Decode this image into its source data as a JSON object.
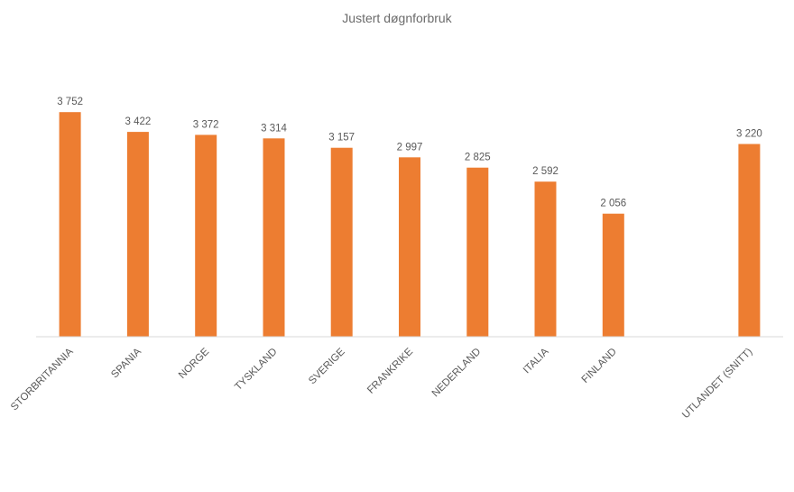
{
  "chart_data": {
    "type": "bar",
    "title": "Justert døgnforbruk",
    "xlabel": "",
    "ylabel": "",
    "categories": [
      "STORBRITANNIA",
      "SPANIA",
      "NORGE",
      "TYSKLAND",
      "SVERIGE",
      "FRANKRIKE",
      "NEDERLAND",
      "ITALIA",
      "FINLAND",
      "",
      "UTLANDET (SNITT)"
    ],
    "values": [
      3752,
      3422,
      3372,
      3314,
      3157,
      2997,
      2825,
      2592,
      2056,
      null,
      3220
    ],
    "data_labels": [
      "3 752",
      "3 422",
      "3 372",
      "3 314",
      "3 157",
      "2 997",
      "2 825",
      "2 592",
      "2 056",
      "",
      "3 220"
    ],
    "ylim": [
      0,
      4000
    ],
    "grid": false,
    "legend": "none",
    "colors": {
      "bar": "#ED7D31",
      "axis": "#d9d9d9",
      "text": "#595959"
    }
  }
}
